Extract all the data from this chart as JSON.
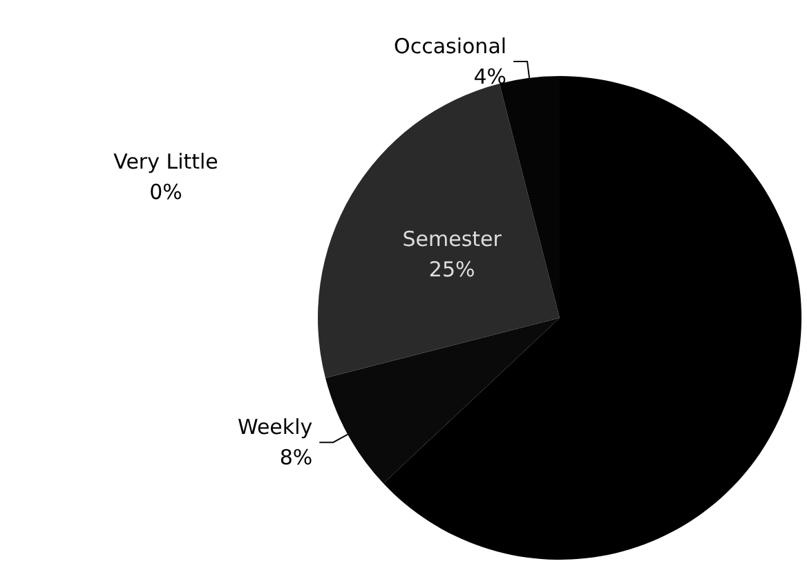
{
  "chart_data": {
    "type": "pie",
    "categories": [
      null,
      "Weekly",
      "Semester",
      "Occasional",
      "Very Little"
    ],
    "values": [
      63,
      8,
      25,
      4,
      0
    ],
    "value_labels": [
      null,
      "8%",
      "25%",
      "4%",
      "0%"
    ],
    "colors": [
      "#000000",
      "#0a0a0a",
      "#2a2a2a",
      "#050505",
      "#1a1a1a"
    ],
    "legend": false
  }
}
